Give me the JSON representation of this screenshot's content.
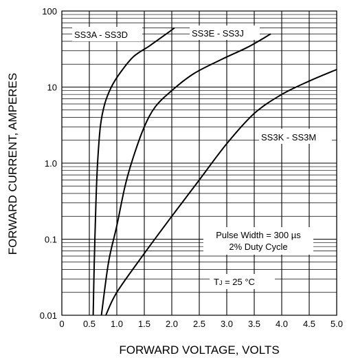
{
  "chart_data": {
    "type": "line",
    "xlabel": "FORWARD VOLTAGE, VOLTS",
    "ylabel": "FORWARD CURRENT, AMPERES",
    "xlim": [
      0,
      5.0
    ],
    "ylim": [
      0.01,
      100
    ],
    "yscale": "log",
    "grid": true,
    "x_ticks": [
      "0",
      "0.5",
      "1.0",
      "1.5",
      "2.0",
      "2.5",
      "3.0",
      "3.5",
      "4.0",
      "4.5",
      "5.0"
    ],
    "y_ticks": [
      {
        "value": 0.01,
        "label": "0.01"
      },
      {
        "value": 0.1,
        "label": "0.1"
      },
      {
        "value": 1,
        "label": "1.0"
      },
      {
        "value": 10,
        "label": "10"
      },
      {
        "value": 100,
        "label": "100"
      }
    ],
    "series": [
      {
        "name": "SS3A - SS3D",
        "x": [
          0.57,
          0.59,
          0.62,
          0.65,
          0.7,
          0.78,
          0.9,
          1.05,
          1.3,
          1.6,
          1.9,
          2.05
        ],
        "y": [
          0.01,
          0.05,
          0.3,
          1.0,
          3.0,
          6.0,
          10,
          15,
          25,
          35,
          50,
          60
        ]
      },
      {
        "name": "SS3E - SS3J",
        "x": [
          0.72,
          0.85,
          1.0,
          1.15,
          1.3,
          1.5,
          1.7,
          2.0,
          2.4,
          2.9,
          3.4,
          3.8
        ],
        "y": [
          0.01,
          0.05,
          0.15,
          0.5,
          1.2,
          3.0,
          5.5,
          9.0,
          15,
          23,
          34,
          50
        ]
      },
      {
        "name": "SS3K - SS3M",
        "x": [
          0.8,
          1.0,
          1.5,
          2.0,
          2.5,
          3.0,
          3.5,
          4.0,
          4.5,
          5.0
        ],
        "y": [
          0.01,
          0.02,
          0.065,
          0.2,
          0.6,
          1.8,
          4.5,
          8.0,
          12,
          17
        ]
      }
    ],
    "annotations": {
      "series_label_a": "SS3A - SS3D",
      "series_label_e": "SS3E - SS3J",
      "series_label_k": "SS3K - SS3M",
      "pulse_line_1": "Pulse Width = 300 µs",
      "pulse_line_2": "2% Duty Cycle",
      "temp_prefix": "T",
      "temp_sub": "J",
      "temp_suffix": " = 25 °C"
    }
  }
}
